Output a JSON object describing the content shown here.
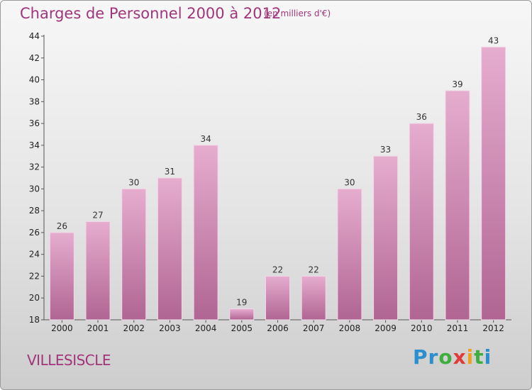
{
  "header": {
    "title": "Charges de Personnel 2000 à 2012",
    "subtitle": "(en milliers d'€)"
  },
  "footer": {
    "city": "VILLESISCLE",
    "logo": "Proxiti"
  },
  "colors": {
    "bar": "#c46fa6",
    "bar_light": "#e4a9cf",
    "title": "#a0357a"
  },
  "chart_data": {
    "type": "bar",
    "title": "Charges de Personnel 2000 à 2012",
    "categories": [
      "2000",
      "2001",
      "2002",
      "2003",
      "2004",
      "2005",
      "2006",
      "2007",
      "2008",
      "2009",
      "2010",
      "2011",
      "2012"
    ],
    "values": [
      26,
      27,
      30,
      31,
      34,
      19,
      22,
      22,
      30,
      33,
      36,
      39,
      43
    ],
    "ylim": [
      18,
      44
    ],
    "yticks": [
      18,
      20,
      22,
      24,
      26,
      28,
      30,
      32,
      34,
      36,
      38,
      40,
      42,
      44
    ],
    "grid": false,
    "legend": "none"
  }
}
